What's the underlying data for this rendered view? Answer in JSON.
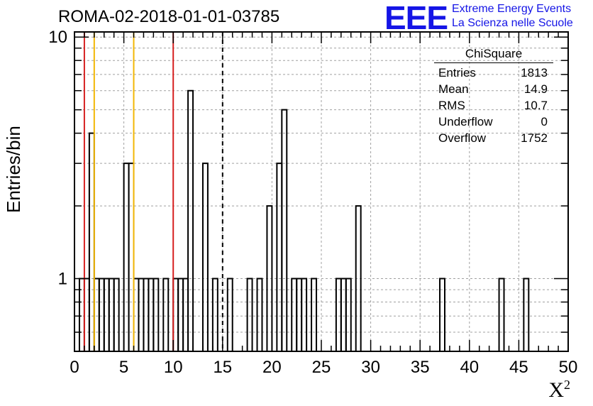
{
  "title": "ROMA-02-2018-01-01-03785",
  "logo": {
    "mark": "EEE",
    "line1": "Extreme Energy Events",
    "line2": "La Scienza nelle Scuole",
    "color": "#1515e6"
  },
  "stats_box": {
    "name": "ChiSquare",
    "rows": [
      {
        "label": "Entries",
        "value": "1813"
      },
      {
        "label": "Mean",
        "value": "14.9"
      },
      {
        "label": "RMS",
        "value": "10.7"
      },
      {
        "label": "Underflow",
        "value": "0"
      },
      {
        "label": "Overflow",
        "value": "1752"
      }
    ]
  },
  "chart_data": {
    "type": "bar",
    "title": "ROMA-02-2018-01-01-03785",
    "xlabel": "X",
    "xlabel_superscript": "2",
    "ylabel": "Entries/bin",
    "xlim": [
      0,
      50
    ],
    "ylim": [
      0.5,
      10.5
    ],
    "y_scale": "log",
    "grid": true,
    "bin_width": 0.5,
    "x_ticks": [
      0,
      5,
      10,
      15,
      20,
      25,
      30,
      35,
      40,
      45,
      50
    ],
    "y_ticks": [
      1,
      10
    ],
    "bins": [
      {
        "x": 0.5,
        "y": 1
      },
      {
        "x": 1.0,
        "y": 1
      },
      {
        "x": 1.5,
        "y": 4
      },
      {
        "x": 2.0,
        "y": 1
      },
      {
        "x": 2.5,
        "y": 1
      },
      {
        "x": 3.0,
        "y": 1
      },
      {
        "x": 3.5,
        "y": 1
      },
      {
        "x": 4.0,
        "y": 1
      },
      {
        "x": 5.0,
        "y": 3
      },
      {
        "x": 5.5,
        "y": 3
      },
      {
        "x": 6.0,
        "y": 1
      },
      {
        "x": 6.5,
        "y": 1
      },
      {
        "x": 7.0,
        "y": 1
      },
      {
        "x": 7.5,
        "y": 1
      },
      {
        "x": 8.0,
        "y": 1
      },
      {
        "x": 9.0,
        "y": 1
      },
      {
        "x": 10.0,
        "y": 1
      },
      {
        "x": 10.5,
        "y": 1
      },
      {
        "x": 11.0,
        "y": 1
      },
      {
        "x": 11.5,
        "y": 6
      },
      {
        "x": 13.0,
        "y": 3
      },
      {
        "x": 14.0,
        "y": 1
      },
      {
        "x": 15.5,
        "y": 1
      },
      {
        "x": 17.5,
        "y": 1
      },
      {
        "x": 18.5,
        "y": 1
      },
      {
        "x": 19.5,
        "y": 2
      },
      {
        "x": 20.5,
        "y": 3
      },
      {
        "x": 21.0,
        "y": 5
      },
      {
        "x": 22.0,
        "y": 1
      },
      {
        "x": 22.5,
        "y": 1
      },
      {
        "x": 23.0,
        "y": 1
      },
      {
        "x": 24.0,
        "y": 1
      },
      {
        "x": 26.5,
        "y": 1
      },
      {
        "x": 27.0,
        "y": 1
      },
      {
        "x": 27.5,
        "y": 1
      },
      {
        "x": 28.5,
        "y": 2
      },
      {
        "x": 37.0,
        "y": 1
      },
      {
        "x": 43.0,
        "y": 1
      },
      {
        "x": 45.5,
        "y": 1
      }
    ],
    "annotations": [
      {
        "kind": "vline",
        "x": 1,
        "color": "#d62020",
        "style": "solid"
      },
      {
        "kind": "vline",
        "x": 10,
        "color": "#d62020",
        "style": "solid"
      },
      {
        "kind": "vline",
        "x": 2,
        "color": "#f2b705",
        "style": "solid"
      },
      {
        "kind": "vline",
        "x": 6,
        "color": "#f2b705",
        "style": "solid"
      },
      {
        "kind": "vline",
        "x": 15,
        "color": "#000000",
        "style": "dashed"
      }
    ]
  }
}
